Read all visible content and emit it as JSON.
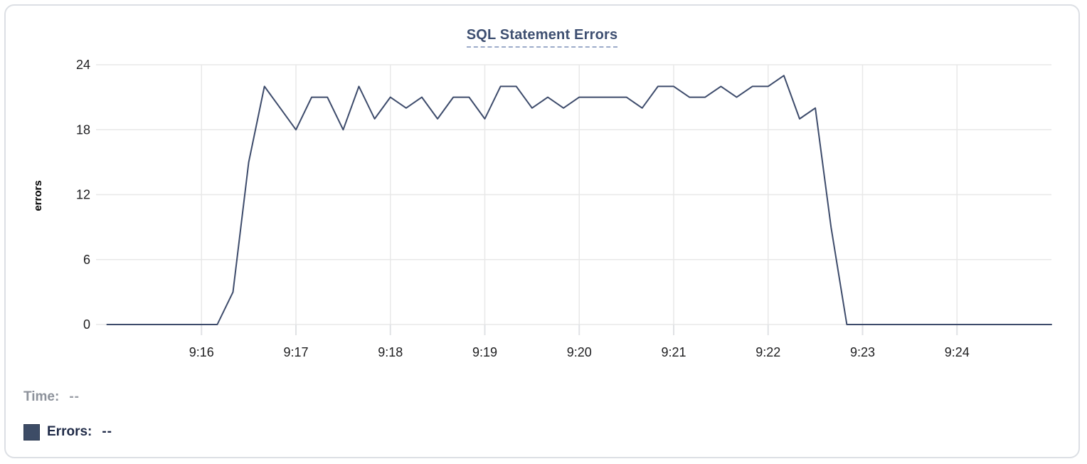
{
  "card": {
    "title": "SQL Statement Errors"
  },
  "legend": {
    "time_label": "Time:",
    "time_value": "--",
    "errors_label": "Errors:",
    "errors_value": "--",
    "swatch_color": "#3d4c66"
  },
  "colors": {
    "line": "#3d4b6b",
    "title": "#3e4f71",
    "title_underline": "#9cabc9",
    "grid": "#e8e8e8",
    "tick": "#e0e2e5",
    "axis_text": "#1d1d1f",
    "card_border": "#dcdfe4",
    "legend_time": "#8d929b",
    "legend_errors": "#1f2a47",
    "swatch": "#3d4c66"
  },
  "chart_data": {
    "type": "line",
    "title": "SQL Statement Errors",
    "xlabel": "",
    "ylabel": "errors",
    "ylim": [
      0,
      24
    ],
    "y_ticks": [
      0,
      6,
      12,
      18,
      24
    ],
    "x_ticks": [
      "9:16",
      "9:17",
      "9:18",
      "9:19",
      "9:20",
      "9:21",
      "9:22",
      "9:23",
      "9:24"
    ],
    "xlim": [
      "9:14:53",
      "9:25:00"
    ],
    "grid": true,
    "legend_position": "bottom-left",
    "series": [
      {
        "name": "Errors",
        "color": "#3d4b6b",
        "x": [
          "9:15:00",
          "9:15:10",
          "9:15:20",
          "9:15:30",
          "9:15:40",
          "9:15:50",
          "9:16:00",
          "9:16:10",
          "9:16:20",
          "9:16:30",
          "9:16:40",
          "9:16:50",
          "9:17:00",
          "9:17:10",
          "9:17:20",
          "9:17:30",
          "9:17:40",
          "9:17:50",
          "9:18:00",
          "9:18:10",
          "9:18:20",
          "9:18:30",
          "9:18:40",
          "9:18:50",
          "9:19:00",
          "9:19:10",
          "9:19:20",
          "9:19:30",
          "9:19:40",
          "9:19:50",
          "9:20:00",
          "9:20:10",
          "9:20:20",
          "9:20:30",
          "9:20:40",
          "9:20:50",
          "9:21:00",
          "9:21:10",
          "9:21:20",
          "9:21:30",
          "9:21:40",
          "9:21:50",
          "9:22:00",
          "9:22:10",
          "9:22:20",
          "9:22:30",
          "9:22:40",
          "9:22:50",
          "9:23:00",
          "9:23:10",
          "9:23:20",
          "9:23:30",
          "9:23:40",
          "9:23:50",
          "9:24:00",
          "9:24:10",
          "9:24:20",
          "9:24:30",
          "9:24:40",
          "9:24:50",
          "9:25:00"
        ],
        "values": [
          0,
          0,
          0,
          0,
          0,
          0,
          0,
          0,
          3,
          15,
          22,
          20,
          18,
          21,
          21,
          18,
          22,
          19,
          21,
          20,
          21,
          19,
          21,
          21,
          19,
          22,
          22,
          20,
          21,
          20,
          21,
          21,
          21,
          21,
          20,
          22,
          22,
          21,
          21,
          22,
          21,
          22,
          22,
          23,
          19,
          20,
          9,
          0,
          0,
          0,
          0,
          0,
          0,
          0,
          0,
          0,
          0,
          0,
          0,
          0,
          0
        ]
      }
    ]
  }
}
